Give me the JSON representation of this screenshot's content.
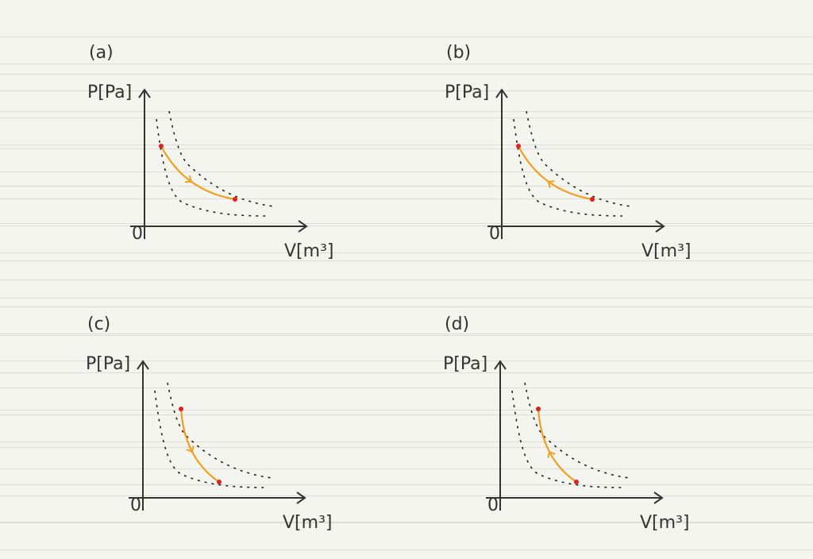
{
  "panels": [
    {
      "label": "(a)",
      "y_axis": "P[Pa]",
      "x_axis": "V[m³]",
      "origin": "0"
    },
    {
      "label": "(b)",
      "y_axis": "P[Pa]",
      "x_axis": "V[m³]",
      "origin": "0"
    },
    {
      "label": "(c)",
      "y_axis": "P[Pa]",
      "x_axis": "V[m³]",
      "origin": "0"
    },
    {
      "label": "(d)",
      "y_axis": "P[Pa]",
      "x_axis": "V[m³]",
      "origin": "0"
    }
  ]
}
